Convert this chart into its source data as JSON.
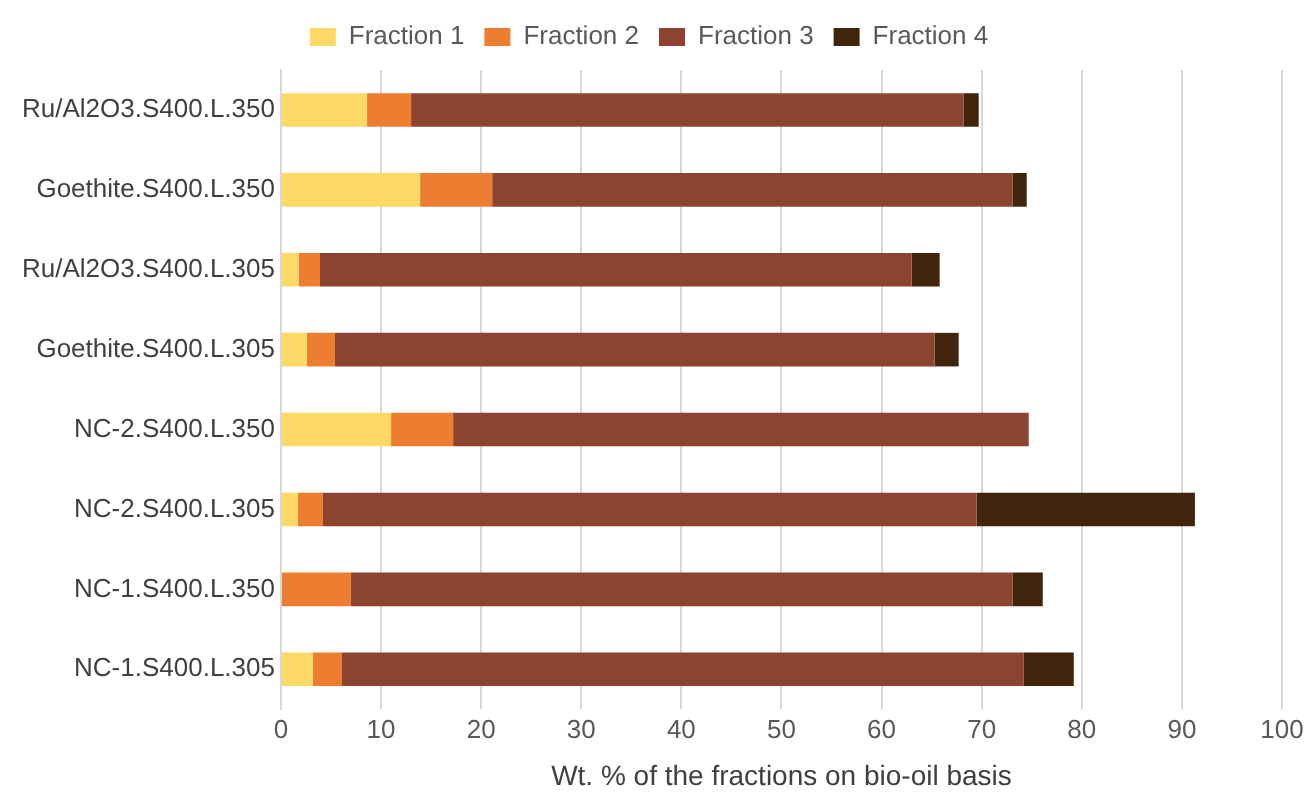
{
  "chart_data": {
    "type": "bar",
    "orientation": "horizontal",
    "stacked": true,
    "xlabel": "Wt. % of the fractions on bio-oil basis",
    "categories": [
      "Ru/Al2O3.S400.L.350",
      "Goethite.S400.L.350",
      "Ru/Al2O3.S400.L.305",
      "Goethite.S400.L.305",
      "NC-2.S400.L.350",
      "NC-2.S400.L.305",
      "NC-1.S400.L.350",
      "NC-1.S400.L.305"
    ],
    "series": [
      {
        "name": "Fraction 1",
        "color": "#ffd966",
        "values": [
          8.6,
          13.9,
          1.8,
          2.6,
          11.0,
          1.7,
          0,
          3.2
        ]
      },
      {
        "name": "Fraction 2",
        "color": "#ed7d31",
        "values": [
          4.4,
          7.2,
          2.1,
          2.8,
          6.2,
          2.5,
          7.0,
          2.9
        ]
      },
      {
        "name": "Fraction 3",
        "color": "#8c4430",
        "values": [
          55.2,
          52.0,
          59.1,
          59.9,
          57.5,
          65.3,
          66.1,
          68.1
        ]
      },
      {
        "name": "Fraction 4",
        "color": "#40250c",
        "values": [
          1.5,
          1.4,
          2.8,
          2.4,
          0,
          21.8,
          3.0,
          5.0
        ]
      }
    ],
    "xlim": [
      0,
      100
    ],
    "xticks": [
      0,
      10,
      20,
      30,
      40,
      50,
      60,
      70,
      80,
      90,
      100
    ],
    "grid": "x",
    "legend": "top"
  }
}
